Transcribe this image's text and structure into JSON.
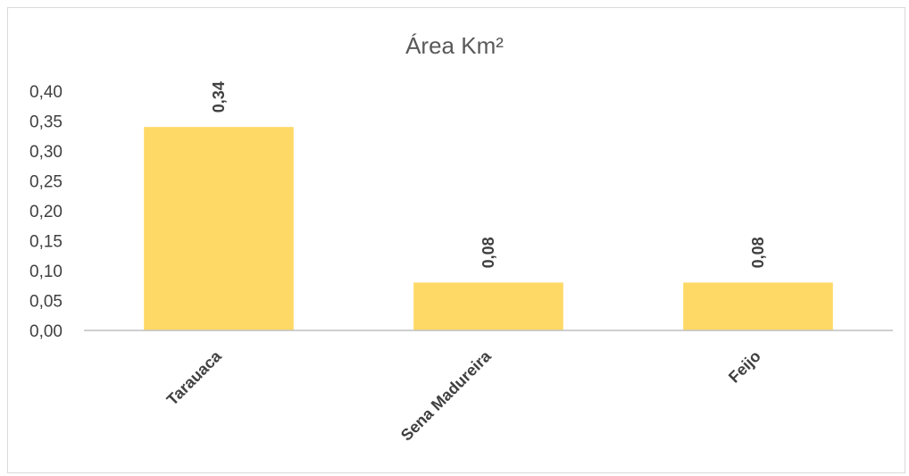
{
  "chart_data": {
    "type": "bar",
    "title": "Área Km²",
    "categories": [
      "Tarauaca",
      "Sena Madureira",
      "Feijo"
    ],
    "values": [
      0.34,
      0.08,
      0.08
    ],
    "data_labels": [
      "0,34",
      "0,08",
      "0,08"
    ],
    "y_ticks": [
      "0,00",
      "0,05",
      "0,10",
      "0,15",
      "0,20",
      "0,25",
      "0,30",
      "0,35",
      "0,40"
    ],
    "ylim": [
      0,
      0.4
    ],
    "xlabel": "",
    "ylabel": "",
    "grid": false,
    "legend": "none",
    "bar_color": "#FFD966",
    "axis_color": "#bfbfbf"
  }
}
